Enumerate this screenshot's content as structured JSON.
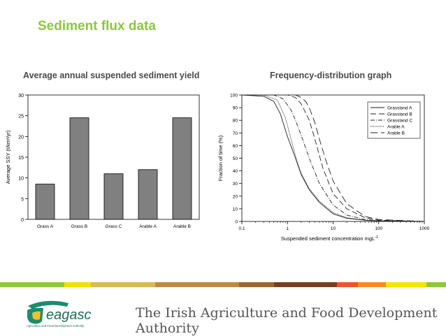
{
  "slide": {
    "title": "Sediment flux data",
    "left_heading": "Average annual suspended sediment yield",
    "right_heading": "Frequency-distribution graph",
    "footer": "The Irish Agriculture and Food Development Authority",
    "logo": {
      "name": "teagasc-logo",
      "text": "eagasc",
      "tagline": "Agriculture and Food Development Authority"
    },
    "title_color": "#8dc63f",
    "stripe_colors": [
      "#8dc63f",
      "#f3e000",
      "#d9b85a",
      "#c08a3e",
      "#a0652c",
      "#7a3e1a",
      "#e9572b",
      "#f28c28",
      "#f7e400",
      "#8dc63f"
    ]
  },
  "chart_data": [
    {
      "type": "bar",
      "title": "",
      "xlabel": "",
      "ylabel": "Average SSY (t/km²/yr)",
      "categories": [
        "Grass A",
        "Grass B",
        "Grass C",
        "Arable A",
        "Arable B"
      ],
      "values": [
        8.5,
        24.5,
        11,
        12,
        24.5
      ],
      "ylim": [
        0,
        30
      ],
      "yticks": [
        0,
        5,
        10,
        15,
        20,
        25,
        30
      ],
      "bar_color": "#808080",
      "grid": false
    },
    {
      "type": "line",
      "title": "",
      "xlabel": "Suspended sediment concentration mgL",
      "xlabel_sup": "-1",
      "ylabel": "Fraction of time (%)",
      "xscale": "log",
      "xlim": [
        0.1,
        1000
      ],
      "xticks": [
        0.1,
        1,
        10,
        100,
        1000
      ],
      "xtick_labels": [
        "0.1",
        "1",
        "10",
        "100",
        "1000"
      ],
      "ylim": [
        0,
        100
      ],
      "yticks": [
        0,
        10,
        20,
        30,
        40,
        50,
        60,
        70,
        80,
        90,
        100
      ],
      "legend_position": "top-right",
      "grid": false,
      "series": [
        {
          "name": "Grassland A",
          "dash": "",
          "x": [
            0.1,
            0.3,
            0.5,
            0.7,
            1,
            1.5,
            2,
            3,
            5,
            10,
            20,
            50,
            100,
            1000
          ],
          "y": [
            100,
            99,
            95,
            85,
            67,
            50,
            37,
            25,
            15,
            6,
            2.5,
            1,
            0.5,
            0
          ]
        },
        {
          "name": "Grassland B",
          "dash": "8,4",
          "x": [
            0.1,
            1,
            1.5,
            2,
            3,
            4,
            6,
            10,
            20,
            50,
            100,
            1000
          ],
          "y": [
            100,
            100,
            98,
            93,
            80,
            65,
            42,
            22,
            10,
            3,
            1,
            0
          ]
        },
        {
          "name": "Grassland C",
          "dash": "6,2,1,2",
          "x": [
            0.1,
            0.5,
            0.8,
            1.2,
            1.5,
            2,
            3,
            5,
            10,
            20,
            50,
            100,
            1000
          ],
          "y": [
            100,
            100,
            97,
            88,
            80,
            68,
            50,
            30,
            13,
            5,
            1.5,
            0.5,
            0
          ]
        },
        {
          "name": "Arable A",
          "dash": "1,1",
          "x": [
            0.1,
            0.3,
            0.6,
            0.9,
            1.2,
            1.6,
            2,
            3,
            5,
            10,
            20,
            50,
            100,
            1000
          ],
          "y": [
            100,
            100,
            96,
            82,
            65,
            48,
            38,
            26,
            16,
            7,
            3,
            1,
            0.3,
            0
          ]
        },
        {
          "name": "Arable B",
          "dash": "10,5",
          "x": [
            0.1,
            1.5,
            2,
            2.5,
            3,
            4,
            5,
            7,
            10,
            20,
            50,
            100,
            1000
          ],
          "y": [
            100,
            100,
            98,
            95,
            90,
            78,
            65,
            48,
            32,
            14,
            4,
            1.5,
            0
          ]
        }
      ]
    }
  ]
}
